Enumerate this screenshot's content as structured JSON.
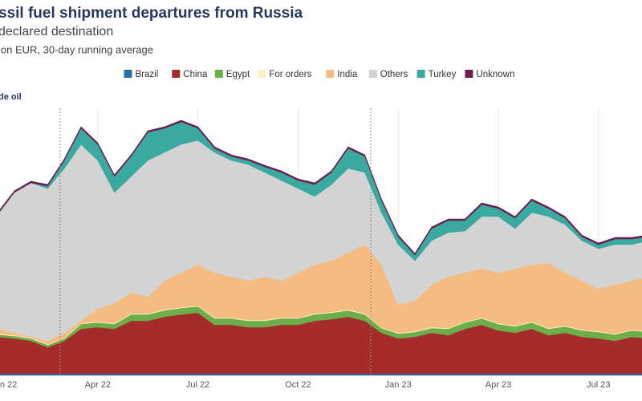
{
  "chart_data": {
    "type": "stacked_area",
    "title": "ssil fuel shipment departures from Russia",
    "subtitle": "declared destination",
    "note": "ion EUR, 30-day running average",
    "panel_label": "de oil",
    "categories": [
      "n 22",
      null,
      null,
      null,
      null,
      null,
      "Apr 22",
      null,
      null,
      null,
      null,
      null,
      "Jul 22",
      null,
      null,
      null,
      null,
      null,
      "Oct 22",
      null,
      null,
      null,
      null,
      null,
      "Jan 23",
      null,
      null,
      null,
      null,
      null,
      "Apr 23",
      null,
      null,
      null,
      null,
      null,
      "Jul 23",
      null,
      null,
      null
    ],
    "ylim": [
      0,
      330
    ],
    "series": [
      {
        "name": "Brazil",
        "color": "#2a6fa8",
        "values": [
          2,
          2,
          2,
          2,
          2,
          2,
          2,
          2,
          2,
          2,
          2,
          2,
          2,
          2,
          2,
          2,
          2,
          2,
          2,
          2,
          2,
          2,
          2,
          2,
          2,
          2,
          2,
          2,
          2,
          2,
          2,
          2,
          2,
          2,
          2,
          2,
          2,
          2,
          2,
          2
        ]
      },
      {
        "name": "China",
        "color": "#a52c2a",
        "values": [
          46,
          44,
          41,
          33,
          41,
          56,
          58,
          56,
          66,
          66,
          71,
          74,
          76,
          61,
          61,
          58,
          58,
          61,
          61,
          66,
          68,
          71,
          66,
          51,
          44,
          46,
          51,
          48,
          56,
          61,
          54,
          51,
          56,
          48,
          51,
          46,
          44,
          41,
          46,
          44
        ]
      },
      {
        "name": "Egypt",
        "color": "#6cae4a",
        "values": [
          3,
          3,
          3,
          3,
          3,
          6,
          6,
          6,
          8,
          8,
          8,
          8,
          8,
          8,
          8,
          8,
          8,
          8,
          8,
          8,
          8,
          8,
          8,
          6,
          6,
          6,
          6,
          8,
          8,
          8,
          8,
          8,
          8,
          8,
          8,
          8,
          8,
          8,
          8,
          8
        ]
      },
      {
        "name": "For orders",
        "color": "#fdf0c4",
        "values": [
          1,
          1,
          1,
          1,
          1,
          1,
          1,
          1,
          1,
          1,
          1,
          1,
          1,
          1,
          1,
          1,
          1,
          1,
          1,
          1,
          1,
          1,
          1,
          1,
          1,
          1,
          1,
          1,
          1,
          1,
          1,
          1,
          1,
          1,
          1,
          1,
          1,
          1,
          1,
          1
        ]
      },
      {
        "name": "India",
        "color": "#f6bb80",
        "values": [
          6,
          3,
          1,
          4,
          6,
          3,
          16,
          25,
          26,
          21,
          36,
          43,
          51,
          56,
          51,
          49,
          54,
          46,
          56,
          61,
          64,
          71,
          86,
          78,
          35,
          38,
          53,
          64,
          61,
          61,
          63,
          71,
          71,
          81,
          66,
          61,
          53,
          61,
          61,
          68
        ]
      },
      {
        "name": "Others",
        "color": "#d3d3d3",
        "values": [
          142,
          175,
          192,
          190,
          205,
          220,
          185,
          138,
          145,
          170,
          160,
          160,
          155,
          150,
          145,
          145,
          130,
          125,
          105,
          85,
          95,
          105,
          90,
          65,
          75,
          50,
          55,
          55,
          52,
          65,
          70,
          50,
          65,
          58,
          60,
          50,
          50,
          50,
          45,
          45
        ]
      },
      {
        "name": "Turkey",
        "color": "#3aa9a0",
        "values": [
          1,
          0,
          0,
          3,
          10,
          20,
          20,
          20,
          25,
          35,
          30,
          28,
          15,
          5,
          5,
          5,
          7,
          10,
          10,
          15,
          15,
          25,
          20,
          15,
          10,
          7,
          15,
          15,
          13,
          15,
          10,
          13,
          15,
          10,
          8,
          5,
          5,
          7,
          7,
          5
        ]
      },
      {
        "name": "Unknown",
        "color": "#6a1f4f",
        "values": [
          2,
          2,
          2,
          2,
          2,
          2,
          2,
          2,
          2,
          2,
          2,
          2,
          2,
          2,
          2,
          2,
          2,
          2,
          2,
          2,
          2,
          2,
          2,
          2,
          2,
          2,
          2,
          2,
          2,
          2,
          2,
          2,
          2,
          2,
          2,
          2,
          2,
          2,
          2,
          2
        ]
      }
    ]
  }
}
